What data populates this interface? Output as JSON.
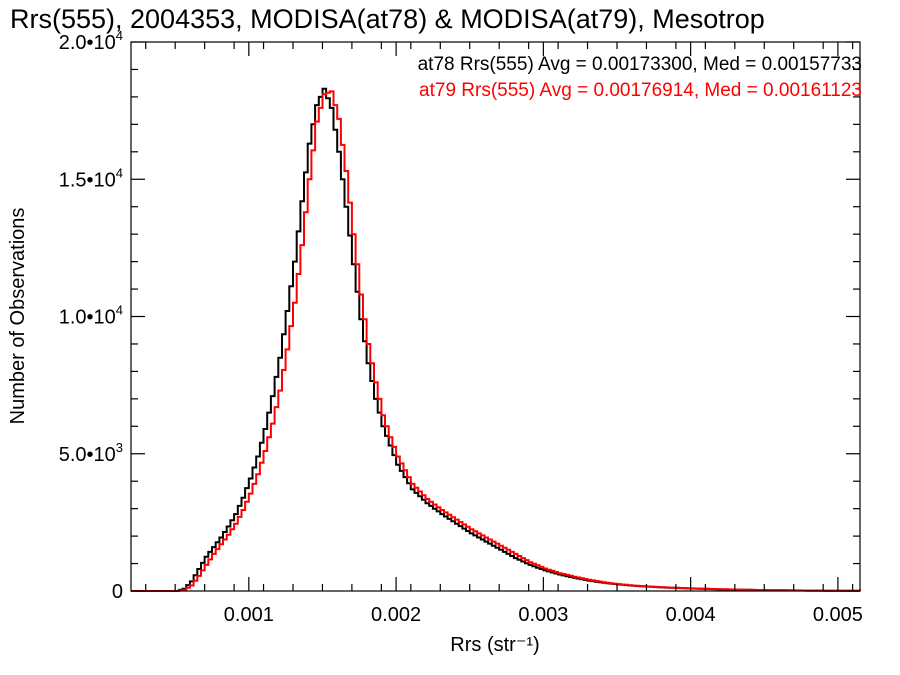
{
  "chart_data": {
    "type": "line",
    "title": "Rrs(555), 2004353, MODISA(at78) & MODISA(at79), Mesotrop",
    "xlabel": "Rrs (str⁻¹)",
    "ylabel": "Number of Observations",
    "xlim": [
      0.0002,
      0.00515
    ],
    "ylim": [
      0,
      20000
    ],
    "xticks": [
      0.001,
      0.002,
      0.003,
      0.004,
      0.005
    ],
    "xtick_labels": [
      "0.001",
      "0.002",
      "0.003",
      "0.004",
      "0.005"
    ],
    "yticks": [
      0,
      5000,
      10000,
      15000,
      20000
    ],
    "ytick_labels": [
      {
        "base": "0",
        "exp": ""
      },
      {
        "base": "5.0•10",
        "exp": "3"
      },
      {
        "base": "1.0•10",
        "exp": "4"
      },
      {
        "base": "1.5•10",
        "exp": "4"
      },
      {
        "base": "2.0•10",
        "exp": "4"
      }
    ],
    "grid": false,
    "legend_position": "top-right",
    "series": [
      {
        "name": "at78",
        "color": "#000000",
        "stats_label": "at78 Rrs(555) Avg = 0.00173300, Med = 0.00157733",
        "x": [
          0.0002,
          0.0005,
          0.00055,
          0.0006,
          0.00065,
          0.0007,
          0.00075,
          0.0008,
          0.00085,
          0.0009,
          0.00095,
          0.001,
          0.00105,
          0.0011,
          0.00115,
          0.0012,
          0.00125,
          0.0013,
          0.00135,
          0.0014,
          0.00145,
          0.0015,
          0.00155,
          0.0016,
          0.00165,
          0.0017,
          0.00175,
          0.0018,
          0.00185,
          0.0019,
          0.00195,
          0.002,
          0.0021,
          0.0022,
          0.0023,
          0.0024,
          0.0025,
          0.0026,
          0.0027,
          0.0028,
          0.0029,
          0.003,
          0.0031,
          0.0032,
          0.0033,
          0.0034,
          0.0035,
          0.0036,
          0.0037,
          0.0038,
          0.004,
          0.0042,
          0.0044,
          0.0046,
          0.0048,
          0.00515
        ],
        "y": [
          0,
          0,
          80,
          350,
          800,
          1250,
          1600,
          1950,
          2350,
          2800,
          3400,
          4100,
          4900,
          5900,
          7100,
          8500,
          10200,
          12000,
          14200,
          16300,
          17700,
          18300,
          17600,
          16000,
          14000,
          11900,
          9900,
          8300,
          7000,
          6000,
          5300,
          4600,
          3700,
          3200,
          2800,
          2450,
          2100,
          1800,
          1500,
          1200,
          950,
          750,
          600,
          480,
          380,
          300,
          240,
          190,
          160,
          130,
          90,
          60,
          40,
          25,
          15,
          5
        ]
      },
      {
        "name": "at79",
        "color": "#ff0000",
        "stats_label": "at79 Rrs(555) Avg = 0.00176914, Med = 0.00161123",
        "x": [
          0.0002,
          0.0005,
          0.00055,
          0.0006,
          0.00065,
          0.0007,
          0.00075,
          0.0008,
          0.00085,
          0.0009,
          0.00095,
          0.001,
          0.00105,
          0.0011,
          0.00115,
          0.0012,
          0.00125,
          0.0013,
          0.00135,
          0.0014,
          0.00145,
          0.0015,
          0.00155,
          0.0016,
          0.00165,
          0.0017,
          0.00175,
          0.0018,
          0.00185,
          0.0019,
          0.00195,
          0.002,
          0.0021,
          0.0022,
          0.0023,
          0.0024,
          0.0025,
          0.0026,
          0.0027,
          0.0028,
          0.0029,
          0.003,
          0.0031,
          0.0032,
          0.0033,
          0.0034,
          0.0035,
          0.0036,
          0.0037,
          0.0038,
          0.004,
          0.0042,
          0.0044,
          0.0046,
          0.0048,
          0.00515
        ],
        "y": [
          0,
          0,
          40,
          200,
          550,
          950,
          1350,
          1700,
          2050,
          2450,
          2950,
          3550,
          4250,
          5100,
          6100,
          7300,
          8800,
          10500,
          12600,
          15000,
          17100,
          18100,
          18200,
          17200,
          15300,
          13000,
          10800,
          9000,
          7600,
          6400,
          5600,
          4900,
          3900,
          3350,
          2950,
          2600,
          2250,
          1950,
          1650,
          1350,
          1050,
          820,
          650,
          520,
          410,
          320,
          250,
          200,
          165,
          135,
          95,
          65,
          42,
          27,
          16,
          5
        ]
      }
    ]
  }
}
